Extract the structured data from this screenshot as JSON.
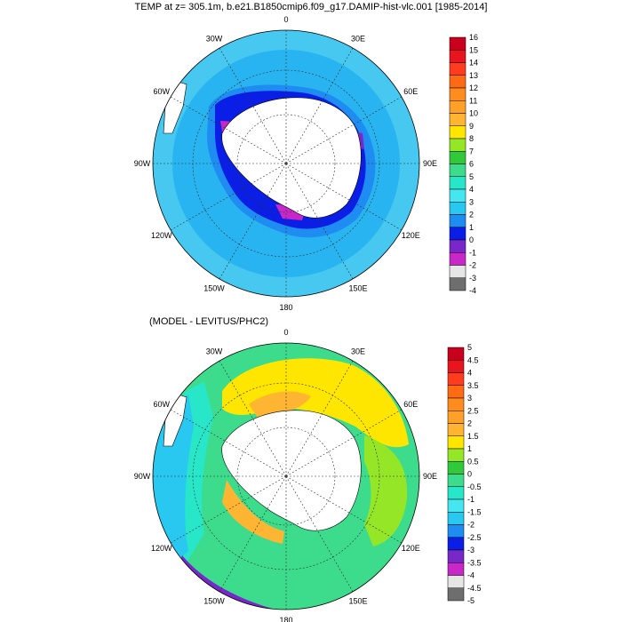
{
  "top_panel": {
    "title": "TEMP at z= 305.1m, b.e21.B1850cmip6.f09_g17.DAMIP-hist-vlc.001 [1985-2014]",
    "lon_labels": [
      "0",
      "30E",
      "60E",
      "90E",
      "120E",
      "150E",
      "180",
      "150W",
      "120W",
      "90W",
      "60W",
      "30W"
    ],
    "colorbar": {
      "labels": [
        "16",
        "15",
        "14",
        "13",
        "12",
        "11",
        "10",
        "9",
        "8",
        "7",
        "6",
        "5",
        "4",
        "3",
        "2",
        "1",
        "0",
        "-1",
        "-2",
        "-3",
        "-4"
      ],
      "colors": [
        "#c8001e",
        "#e8141e",
        "#ff3c1e",
        "#ff6a14",
        "#ff8c1e",
        "#ffa028",
        "#ffb432",
        "#ffe600",
        "#96e628",
        "#32c83c",
        "#3cdc8c",
        "#28e6c8",
        "#46e6f0",
        "#28c8f0",
        "#1e8cf0",
        "#0a1ee6",
        "#7828c8",
        "#c828c8",
        "#e6e6e6",
        "#6e6e6e"
      ]
    }
  },
  "bottom_panel": {
    "title": "(MODEL - LEVITUS/PHC2)",
    "lon_labels": [
      "0",
      "30E",
      "60E",
      "90E",
      "120E",
      "150E",
      "180",
      "150W",
      "120W",
      "90W",
      "60W",
      "30W"
    ],
    "colorbar": {
      "labels": [
        "5",
        "4.5",
        "4",
        "3.5",
        "3",
        "2.5",
        "2",
        "1.5",
        "1",
        "0.5",
        "0",
        "-0.5",
        "-1",
        "-1.5",
        "-2",
        "-2.5",
        "-3",
        "-3.5",
        "-4",
        "-4.5",
        "-5"
      ],
      "colors": [
        "#c8001e",
        "#e8141e",
        "#ff3c1e",
        "#ff6a14",
        "#ff8c1e",
        "#ffa028",
        "#ffb432",
        "#ffe600",
        "#96e628",
        "#32c83c",
        "#3cdc8c",
        "#28e6c8",
        "#46e6f0",
        "#28c8f0",
        "#1e8cf0",
        "#0a1ee6",
        "#7828c8",
        "#c828c8",
        "#e6e6e6",
        "#6e6e6e"
      ]
    }
  },
  "map_colors": {
    "ocean_top": "#46c8f0",
    "ocean_top_deep": "#28b4f0",
    "ocean_bottom": "#3cdc8c",
    "land": "#ffffff"
  }
}
